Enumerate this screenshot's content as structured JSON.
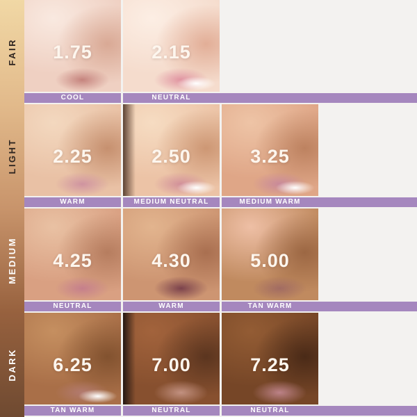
{
  "theme": {
    "background": "#f3f2f0",
    "bar_color": "#a587be",
    "bar_text_color": "#ffffff",
    "number_color": "#fdf6ee",
    "sidebar_text_dark": "#2e2520",
    "sidebar_text_light": "#ffffff",
    "sidebar_gradient": [
      "#f1d8a5",
      "#e2ba8b",
      "#c8946b",
      "#97613e",
      "#6f4a31"
    ]
  },
  "rows": [
    {
      "category": "FAIR",
      "tiles": [
        {
          "shade": "1.75",
          "undertone": "COOL",
          "colors": {
            "skin": "#efd0c2",
            "hi": "#f9e9e0",
            "shadow": "#d9a995",
            "lip": "#c5837d"
          }
        },
        {
          "shade": "2.15",
          "undertone": "NEUTRAL",
          "colors": {
            "skin": "#f5dccd",
            "hi": "#fceee4",
            "shadow": "#e2ae97",
            "lip": "#e093a0",
            "teeth": "#ffffff"
          }
        }
      ]
    },
    {
      "category": "LIGHT",
      "tiles": [
        {
          "shade": "2.25",
          "undertone": "WARM",
          "colors": {
            "skin": "#e9c1a5",
            "hi": "#f3d8bf",
            "shadow": "#c6906f",
            "lip": "#cf93a0"
          }
        },
        {
          "shade": "2.50",
          "undertone": "MEDIUM NEUTRAL",
          "colors": {
            "skin": "#ecc3a6",
            "hi": "#f6dcc2",
            "shadow": "#cd9774",
            "lip": "#d18f99",
            "edge": "#5c4233",
            "teeth": "#ffffff"
          }
        },
        {
          "shade": "3.25",
          "undertone": "MEDIUM WARM",
          "colors": {
            "skin": "#dfa687",
            "hi": "#eec4a6",
            "shadow": "#bd8260",
            "lip": "#c8899a",
            "teeth": "#ffffff"
          }
        }
      ]
    },
    {
      "category": "MEDIUM",
      "tiles": [
        {
          "shade": "4.25",
          "undertone": "NEUTRAL",
          "colors": {
            "skin": "#d9a082",
            "hi": "#e9c1a3",
            "shadow": "#b67d5f",
            "lip": "#c57f8c"
          }
        },
        {
          "shade": "4.30",
          "undertone": "WARM",
          "colors": {
            "skin": "#cd9572",
            "hi": "#e2b48e",
            "shadow": "#a96f50",
            "lip": "#7b424c"
          }
        },
        {
          "shade": "5.00",
          "undertone": "TAN WARM",
          "colors": {
            "skin": "#c08a5f",
            "hi": "#eebfa5",
            "shadow": "#9c6743",
            "lip": "#a16b62"
          }
        }
      ]
    },
    {
      "category": "DARK",
      "tiles": [
        {
          "shade": "6.25",
          "undertone": "TAN WARM",
          "colors": {
            "skin": "#a96f48",
            "hi": "#c58f60",
            "shadow": "#82522f",
            "lip": "#b27a70",
            "teeth": "#ffffff"
          }
        },
        {
          "shade": "7.00",
          "undertone": "NEUTRAL",
          "colors": {
            "skin": "#87502f",
            "hi": "#a2633c",
            "shadow": "#5b351f",
            "lip": "#c29181",
            "edge": "#241712"
          }
        },
        {
          "shade": "7.25",
          "undertone": "NEUTRAL",
          "colors": {
            "skin": "#764627",
            "hi": "#935c34",
            "shadow": "#4a2a17",
            "lip": "#bc8288"
          }
        }
      ]
    }
  ]
}
